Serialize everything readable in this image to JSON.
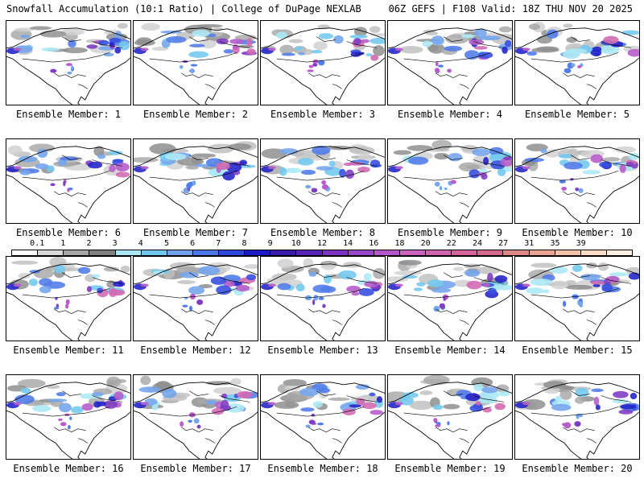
{
  "header": {
    "left_title": "Snowfall Accumulation (10:1 Ratio) | College of DuPage NEXLAB",
    "right_title": "06Z GEFS | F108 Valid: 18Z THU NOV 20 2025"
  },
  "panels": [
    {
      "label": "Ensemble Member: 1"
    },
    {
      "label": "Ensemble Member: 2"
    },
    {
      "label": "Ensemble Member: 3"
    },
    {
      "label": "Ensemble Member: 4"
    },
    {
      "label": "Ensemble Member: 5"
    },
    {
      "label": "Ensemble Member: 6"
    },
    {
      "label": "Ensemble Member: 7"
    },
    {
      "label": "Ensemble Member: 8"
    },
    {
      "label": "Ensemble Member: 9"
    },
    {
      "label": "Ensemble Member: 10"
    },
    {
      "label": "Ensemble Member: 11"
    },
    {
      "label": "Ensemble Member: 12"
    },
    {
      "label": "Ensemble Member: 13"
    },
    {
      "label": "Ensemble Member: 14"
    },
    {
      "label": "Ensemble Member: 15"
    },
    {
      "label": "Ensemble Member: 16"
    },
    {
      "label": "Ensemble Member: 17"
    },
    {
      "label": "Ensemble Member: 18"
    },
    {
      "label": "Ensemble Member: 19"
    },
    {
      "label": "Ensemble Member: 20"
    }
  ],
  "colorbar": {
    "labels": [
      "0.1",
      "1",
      "2",
      "3",
      "4",
      "5",
      "6",
      "7",
      "8",
      "9",
      "10",
      "12",
      "14",
      "16",
      "18",
      "20",
      "22",
      "24",
      "27",
      "31",
      "35",
      "39"
    ],
    "colors": [
      "#ffffff",
      "#d9d9d9",
      "#a6a6a6",
      "#7f7f7f",
      "#a8e8f5",
      "#6fc8ee",
      "#6fa2ec",
      "#4a78e8",
      "#2f48de",
      "#1c1cc6",
      "#3a1aa8",
      "#5a24b4",
      "#7a34c0",
      "#9a46c8",
      "#b456c8",
      "#ca62c0",
      "#d064b0",
      "#d4649c",
      "#d46a8c",
      "#dc8884",
      "#e8a490",
      "#f2c2a8",
      "#fadcc4",
      "#fdf0e0"
    ]
  }
}
